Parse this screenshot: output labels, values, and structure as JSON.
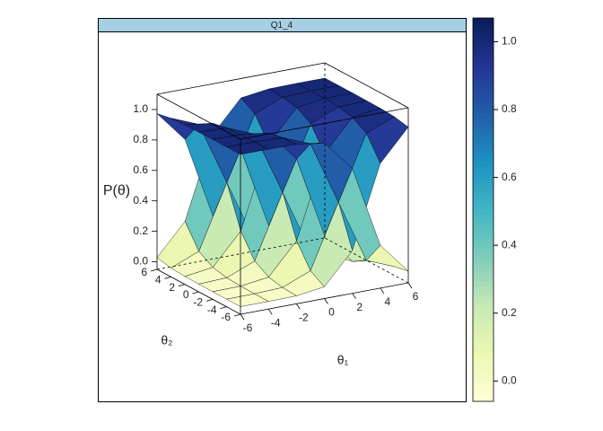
{
  "chart_data": {
    "type": "surface3d",
    "panel_title": "Q1_4",
    "zlabel": "P(θ)",
    "xlabel": "θ₁",
    "ylabel": "θ₂",
    "x": [
      -6,
      -4,
      -2,
      0,
      2,
      4,
      6
    ],
    "y": [
      -6,
      -4,
      -2,
      0,
      2,
      4,
      6
    ],
    "xlim": [
      -6,
      6
    ],
    "ylim": [
      -6,
      6
    ],
    "zlim": [
      -0.05,
      1.1
    ],
    "xticks": [
      -6,
      -4,
      -2,
      0,
      2,
      4,
      6
    ],
    "yticks": [
      -6,
      -4,
      -2,
      0,
      2,
      4,
      6
    ],
    "zticks": [
      {
        "value": 0,
        "label": "0.0"
      },
      {
        "value": 0.2,
        "label": "0.2"
      },
      {
        "value": 0.4,
        "label": "0.4"
      },
      {
        "value": 0.6,
        "label": "0.6"
      },
      {
        "value": 0.8,
        "label": "0.8"
      },
      {
        "value": 1,
        "label": "1.0"
      }
    ],
    "surfaces": [
      {
        "values": [
          [
            0,
            0,
            0.002,
            0.027,
            0.231,
            0.769,
            0.973
          ],
          [
            0,
            0.001,
            0.008,
            0.083,
            0.5,
            0.917,
            0.992
          ],
          [
            0,
            0.002,
            0.027,
            0.231,
            0.769,
            0.973,
            0.998
          ],
          [
            0.001,
            0.008,
            0.083,
            0.5,
            0.917,
            0.992,
            0.999
          ],
          [
            0.002,
            0.027,
            0.231,
            0.769,
            0.973,
            0.998,
            1
          ],
          [
            0.008,
            0.083,
            0.5,
            0.917,
            0.992,
            0.999,
            1
          ],
          [
            0.027,
            0.231,
            0.769,
            0.973,
            0.998,
            1,
            1
          ]
        ]
      },
      {
        "values": [
          [
            1,
            1,
            0.998,
            0.973,
            0.769,
            0.231,
            0.027
          ],
          [
            1,
            0.999,
            0.992,
            0.917,
            0.5,
            0.083,
            0.008
          ],
          [
            1,
            0.998,
            0.973,
            0.769,
            0.231,
            0.027,
            0.002
          ],
          [
            0.999,
            0.992,
            0.917,
            0.5,
            0.083,
            0.008,
            0.001
          ],
          [
            0.998,
            0.973,
            0.769,
            0.231,
            0.027,
            0.002,
            0
          ],
          [
            0.992,
            0.917,
            0.5,
            0.083,
            0.008,
            0.001,
            0
          ],
          [
            0.973,
            0.769,
            0.231,
            0.027,
            0.002,
            0,
            0
          ]
        ]
      }
    ],
    "colormap": [
      "#ffffd9",
      "#edf8b1",
      "#c7e9b4",
      "#7fcdbb",
      "#41b6c4",
      "#1d91c0",
      "#225ea8",
      "#253494",
      "#081d58"
    ],
    "colorbar_lim": [
      -0.06,
      1.07
    ],
    "colorbar_ticks": [
      {
        "value": 0,
        "label": "0.0"
      },
      {
        "value": 0.2,
        "label": "0.2"
      },
      {
        "value": 0.4,
        "label": "0.4"
      },
      {
        "value": 0.6,
        "label": "0.6"
      },
      {
        "value": 0.8,
        "label": "0.8"
      },
      {
        "value": 1,
        "label": "1.0"
      }
    ]
  }
}
